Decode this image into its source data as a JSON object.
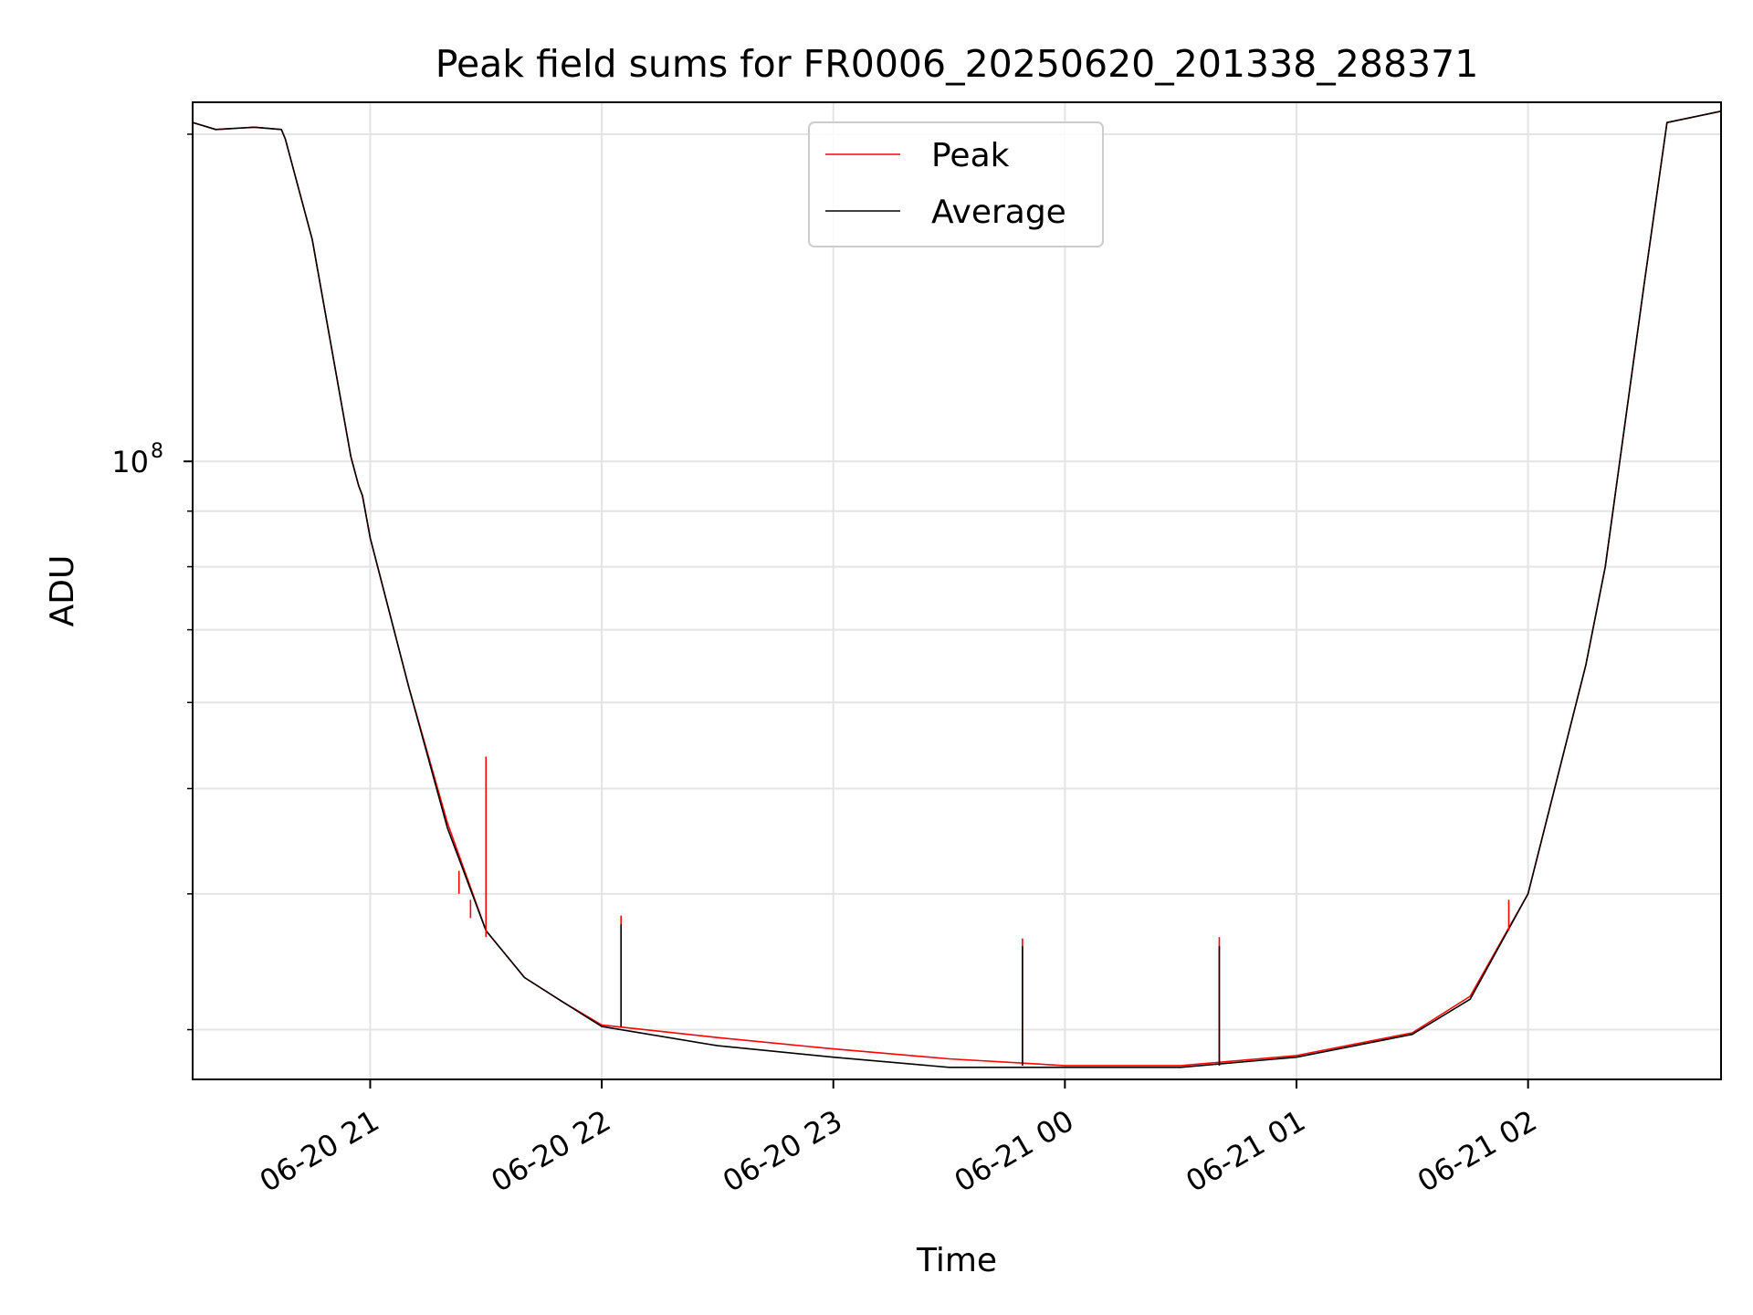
{
  "chart_data": {
    "type": "line",
    "title": "Peak field sums for FR0006_20250620_201338_288371",
    "xlabel": "Time",
    "ylabel": "ADU",
    "yscale": "log",
    "ylim": [
      27000000,
      214000000
    ],
    "xlim": [
      "2025-06-20 20:14",
      "2025-06-21 02:50"
    ],
    "grid": true,
    "legend": {
      "placement": "top-center",
      "entries": [
        "Peak",
        "Average"
      ]
    },
    "x_ticks": [
      "06-20 21",
      "06-20 22",
      "06-20 23",
      "06-21 00",
      "06-21 01",
      "06-21 02"
    ],
    "y_ticks": [
      {
        "value": 100000000,
        "label": "10",
        "exponent": "8"
      }
    ],
    "series": [
      {
        "name": "Peak",
        "color": "#ff0000",
        "x": [
          "2025-06-20 20:14",
          "2025-06-20 20:20",
          "2025-06-20 20:30",
          "2025-06-20 20:37",
          "2025-06-20 20:38",
          "2025-06-20 20:45",
          "2025-06-20 20:55",
          "2025-06-20 20:57",
          "2025-06-20 20:58",
          "2025-06-20 21:00",
          "2025-06-20 21:10",
          "2025-06-20 21:20",
          "2025-06-20 21:30",
          "2025-06-20 21:40",
          "2025-06-20 21:50",
          "2025-06-20 22:00",
          "2025-06-20 22:30",
          "2025-06-20 23:00",
          "2025-06-20 23:30",
          "2025-06-21 00:00",
          "2025-06-21 00:30",
          "2025-06-21 01:00",
          "2025-06-21 01:30",
          "2025-06-21 01:45",
          "2025-06-21 02:00",
          "2025-06-21 02:15",
          "2025-06-21 02:20",
          "2025-06-21 02:30",
          "2025-06-21 02:36",
          "2025-06-21 02:50"
        ],
        "values": [
          205000000,
          202000000,
          203000000,
          202000000,
          198000000,
          160000000,
          101000000,
          95000000,
          93000000,
          85000000,
          62000000,
          46500000,
          37000000,
          33500000,
          31800000,
          30300000,
          29500000,
          28800000,
          28200000,
          27800000,
          27800000,
          28400000,
          29800000,
          32200000,
          40000000,
          65000000,
          80000000,
          145000000,
          205000000,
          210000000
        ]
      },
      {
        "name": "Average",
        "color": "#000000",
        "x": [
          "2025-06-20 20:14",
          "2025-06-20 20:20",
          "2025-06-20 20:30",
          "2025-06-20 20:37",
          "2025-06-20 20:38",
          "2025-06-20 20:45",
          "2025-06-20 20:55",
          "2025-06-20 20:57",
          "2025-06-20 20:58",
          "2025-06-20 21:00",
          "2025-06-20 21:10",
          "2025-06-20 21:20",
          "2025-06-20 21:30",
          "2025-06-20 21:40",
          "2025-06-20 21:50",
          "2025-06-20 22:00",
          "2025-06-20 22:30",
          "2025-06-20 23:00",
          "2025-06-20 23:30",
          "2025-06-21 00:00",
          "2025-06-21 00:30",
          "2025-06-21 01:00",
          "2025-06-21 01:30",
          "2025-06-21 01:45",
          "2025-06-21 02:00",
          "2025-06-21 02:15",
          "2025-06-21 02:20",
          "2025-06-21 02:30",
          "2025-06-21 02:36",
          "2025-06-21 02:50"
        ],
        "values": [
          205000000,
          202000000,
          203000000,
          202000000,
          198000000,
          160000000,
          101000000,
          95000000,
          93000000,
          85000000,
          62000000,
          46000000,
          37000000,
          33500000,
          31800000,
          30200000,
          29000000,
          28300000,
          27700000,
          27700000,
          27700000,
          28300000,
          29700000,
          32000000,
          40000000,
          65000000,
          80000000,
          145000000,
          205000000,
          210000000
        ]
      }
    ],
    "spikes": [
      {
        "series": "Peak",
        "x": "2025-06-20 21:30",
        "base": 36500000,
        "top": 53500000
      },
      {
        "series": "Peak",
        "x": "2025-06-20 21:23",
        "base": 40000000,
        "top": 42000000
      },
      {
        "series": "Peak",
        "x": "2025-06-20 21:26",
        "base": 38000000,
        "top": 39500000
      },
      {
        "series": "Peak",
        "x": "2025-06-20 22:05",
        "base": 30200000,
        "top": 38200000
      },
      {
        "series": "Average",
        "x": "2025-06-20 22:05",
        "base": 30200000,
        "top": 37500000
      },
      {
        "series": "Peak",
        "x": "2025-06-20 23:49",
        "base": 27800000,
        "top": 36400000
      },
      {
        "series": "Average",
        "x": "2025-06-20 23:49",
        "base": 27800000,
        "top": 35800000
      },
      {
        "series": "Peak",
        "x": "2025-06-21 00:40",
        "base": 27800000,
        "top": 36500000
      },
      {
        "series": "Average",
        "x": "2025-06-21 00:40",
        "base": 27800000,
        "top": 35800000
      },
      {
        "series": "Peak",
        "x": "2025-06-21 01:55",
        "base": 37000000,
        "top": 39500000
      }
    ]
  }
}
